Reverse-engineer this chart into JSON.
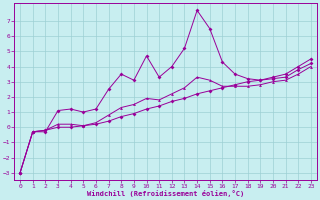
{
  "title": "",
  "xlabel": "Windchill (Refroidissement éolien,°C)",
  "ylabel": "",
  "bg_color": "#c8eef0",
  "grid_color": "#9dd0d4",
  "line_color": "#990099",
  "xlim": [
    -0.5,
    23.5
  ],
  "ylim": [
    -3.5,
    8.2
  ],
  "xticks": [
    0,
    1,
    2,
    3,
    4,
    5,
    6,
    7,
    8,
    9,
    10,
    11,
    12,
    13,
    14,
    15,
    16,
    17,
    18,
    19,
    20,
    21,
    22,
    23
  ],
  "yticks": [
    -3,
    -2,
    -1,
    0,
    1,
    2,
    3,
    4,
    5,
    6,
    7
  ],
  "series1_x": [
    0,
    1,
    2,
    3,
    4,
    5,
    6,
    7,
    8,
    9,
    10,
    11,
    12,
    13,
    14,
    15,
    16,
    17,
    18,
    19,
    20,
    21,
    22,
    23
  ],
  "series1_y": [
    -3.0,
    -0.3,
    -0.3,
    1.1,
    1.2,
    1.0,
    1.2,
    2.5,
    3.5,
    3.1,
    4.7,
    3.3,
    4.0,
    5.2,
    7.7,
    6.5,
    4.3,
    3.5,
    3.2,
    3.1,
    3.3,
    3.5,
    4.0,
    4.5
  ],
  "series2_x": [
    0,
    1,
    2,
    3,
    4,
    5,
    6,
    7,
    8,
    9,
    10,
    11,
    12,
    13,
    14,
    15,
    16,
    17,
    18,
    19,
    20,
    21,
    22,
    23
  ],
  "series2_y": [
    -3.0,
    -0.3,
    -0.2,
    0.0,
    0.0,
    0.1,
    0.2,
    0.4,
    0.7,
    0.9,
    1.2,
    1.4,
    1.7,
    1.9,
    2.2,
    2.4,
    2.6,
    2.8,
    3.0,
    3.1,
    3.2,
    3.3,
    3.8,
    4.2
  ],
  "series3_x": [
    0,
    1,
    2,
    3,
    4,
    5,
    6,
    7,
    8,
    9,
    10,
    11,
    12,
    13,
    14,
    15,
    16,
    17,
    18,
    19,
    20,
    21,
    22,
    23
  ],
  "series3_y": [
    -3.0,
    -0.3,
    -0.2,
    0.2,
    0.2,
    0.1,
    0.3,
    0.8,
    1.3,
    1.5,
    1.9,
    1.8,
    2.2,
    2.6,
    3.3,
    3.1,
    2.7,
    2.7,
    2.7,
    2.8,
    3.0,
    3.1,
    3.5,
    4.0
  ]
}
